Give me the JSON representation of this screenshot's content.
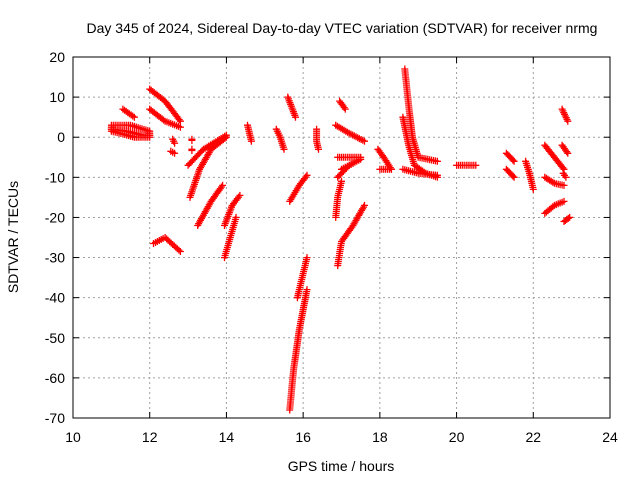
{
  "chart_data": {
    "type": "scatter",
    "title": "Day 345 of 2024, Sidereal Day-to-day VTEC variation (SDTVAR) for receiver nrmg",
    "xlabel": "GPS time / hours",
    "ylabel": "SDTVAR / TECUs",
    "xlim": [
      10,
      24
    ],
    "ylim": [
      -70,
      20
    ],
    "xticks": [
      10,
      12,
      14,
      16,
      18,
      20,
      22,
      24
    ],
    "yticks": [
      -70,
      -60,
      -50,
      -40,
      -30,
      -20,
      -10,
      0,
      10,
      20
    ],
    "grid": true,
    "marker": "+",
    "color": "#ff0000",
    "series_note": "arcs of points, each given as polyline vertices [hour, TECU]",
    "arcs": [
      [
        [
          11.0,
          3
        ],
        [
          11.5,
          3
        ],
        [
          12.0,
          1.5
        ],
        [
          12.0,
          0
        ],
        [
          11.6,
          0
        ],
        [
          11.3,
          0.8
        ],
        [
          11.0,
          1.5
        ],
        [
          11.0,
          3
        ]
      ],
      [
        [
          11.0,
          2
        ],
        [
          11.4,
          1.5
        ],
        [
          11.8,
          0.5
        ],
        [
          12.0,
          0.5
        ]
      ],
      [
        [
          11.3,
          7
        ],
        [
          11.6,
          5
        ]
      ],
      [
        [
          12.0,
          12
        ],
        [
          12.4,
          9
        ],
        [
          12.8,
          4
        ]
      ],
      [
        [
          12.0,
          7
        ],
        [
          12.4,
          4
        ],
        [
          12.8,
          2.5
        ]
      ],
      [
        [
          12.6,
          -0.5
        ],
        [
          12.65,
          -1.5
        ]
      ],
      [
        [
          12.55,
          -3.5
        ],
        [
          12.65,
          -4
        ]
      ],
      [
        [
          13.1,
          -0.5
        ],
        [
          13.1,
          -0.8
        ]
      ],
      [
        [
          13.1,
          -3
        ],
        [
          13.1,
          -3.3
        ]
      ],
      [
        [
          12.1,
          -26.5
        ],
        [
          12.4,
          -25
        ],
        [
          12.8,
          -28.5
        ]
      ],
      [
        [
          13.0,
          -7
        ],
        [
          13.4,
          -3
        ],
        [
          14.0,
          0.5
        ]
      ],
      [
        [
          13.05,
          -15
        ],
        [
          13.3,
          -8
        ],
        [
          13.6,
          -3
        ],
        [
          14.0,
          0
        ]
      ],
      [
        [
          13.25,
          -22
        ],
        [
          13.6,
          -16
        ],
        [
          13.9,
          -12
        ]
      ],
      [
        [
          13.95,
          -22
        ],
        [
          14.15,
          -17
        ],
        [
          14.35,
          -14.5
        ]
      ],
      [
        [
          13.95,
          -30
        ],
        [
          14.1,
          -25
        ],
        [
          14.25,
          -20
        ]
      ],
      [
        [
          14.55,
          3
        ],
        [
          14.6,
          1
        ],
        [
          14.65,
          -1
        ]
      ],
      [
        [
          15.3,
          2
        ],
        [
          15.4,
          0
        ],
        [
          15.5,
          -3
        ]
      ],
      [
        [
          15.6,
          10
        ],
        [
          15.8,
          5
        ]
      ],
      [
        [
          15.65,
          -16
        ],
        [
          15.9,
          -12
        ],
        [
          16.1,
          -9.5
        ]
      ],
      [
        [
          15.85,
          -40
        ],
        [
          16.0,
          -34
        ],
        [
          16.1,
          -30
        ]
      ],
      [
        [
          15.65,
          -68
        ],
        [
          15.75,
          -58
        ],
        [
          15.9,
          -48
        ],
        [
          16.1,
          -38
        ]
      ],
      [
        [
          16.35,
          2
        ],
        [
          16.35,
          -1
        ],
        [
          16.4,
          -3
        ]
      ],
      [
        [
          16.95,
          9
        ],
        [
          17.1,
          7
        ]
      ],
      [
        [
          16.85,
          3
        ],
        [
          17.2,
          1
        ],
        [
          17.6,
          -1
        ]
      ],
      [
        [
          16.9,
          -5
        ],
        [
          17.5,
          -5
        ]
      ],
      [
        [
          16.9,
          -10
        ],
        [
          17.2,
          -7
        ],
        [
          17.5,
          -5.5
        ]
      ],
      [
        [
          17.0,
          -8
        ],
        [
          17.3,
          -6.5
        ]
      ],
      [
        [
          16.85,
          -20
        ],
        [
          16.9,
          -15
        ],
        [
          17.0,
          -11
        ]
      ],
      [
        [
          16.9,
          -32
        ],
        [
          17.0,
          -26
        ],
        [
          17.3,
          -22
        ],
        [
          17.6,
          -17
        ]
      ],
      [
        [
          17.95,
          -3
        ],
        [
          18.1,
          -5
        ],
        [
          18.3,
          -8
        ]
      ],
      [
        [
          18.65,
          17
        ],
        [
          18.75,
          8
        ],
        [
          18.85,
          0
        ],
        [
          19.0,
          -5
        ],
        [
          19.5,
          -6
        ]
      ],
      [
        [
          18.6,
          5
        ],
        [
          18.75,
          -2
        ],
        [
          18.9,
          -7
        ],
        [
          19.2,
          -9
        ],
        [
          19.5,
          -10
        ]
      ],
      [
        [
          18.6,
          -8
        ],
        [
          19.0,
          -9
        ],
        [
          19.5,
          -9.5
        ]
      ],
      [
        [
          18.0,
          -8
        ],
        [
          18.3,
          -8
        ]
      ],
      [
        [
          20.0,
          -7
        ],
        [
          20.25,
          -7
        ],
        [
          20.5,
          -7
        ]
      ],
      [
        [
          21.3,
          -4
        ],
        [
          21.5,
          -6
        ]
      ],
      [
        [
          21.3,
          -8
        ],
        [
          21.5,
          -10
        ]
      ],
      [
        [
          21.8,
          -6
        ],
        [
          21.9,
          -9
        ],
        [
          22.0,
          -13
        ]
      ],
      [
        [
          22.3,
          -2
        ],
        [
          22.55,
          -5
        ],
        [
          22.8,
          -8
        ]
      ],
      [
        [
          22.3,
          -10
        ],
        [
          22.55,
          -11.5
        ],
        [
          22.8,
          -12
        ]
      ],
      [
        [
          22.3,
          -19
        ],
        [
          22.55,
          -17
        ],
        [
          22.8,
          -16
        ]
      ],
      [
        [
          22.75,
          7
        ],
        [
          22.9,
          4
        ]
      ],
      [
        [
          22.75,
          -2
        ],
        [
          22.9,
          -4
        ]
      ],
      [
        [
          22.78,
          -9
        ],
        [
          22.85,
          -10
        ]
      ],
      [
        [
          22.8,
          -21
        ],
        [
          22.95,
          -20
        ]
      ]
    ]
  }
}
